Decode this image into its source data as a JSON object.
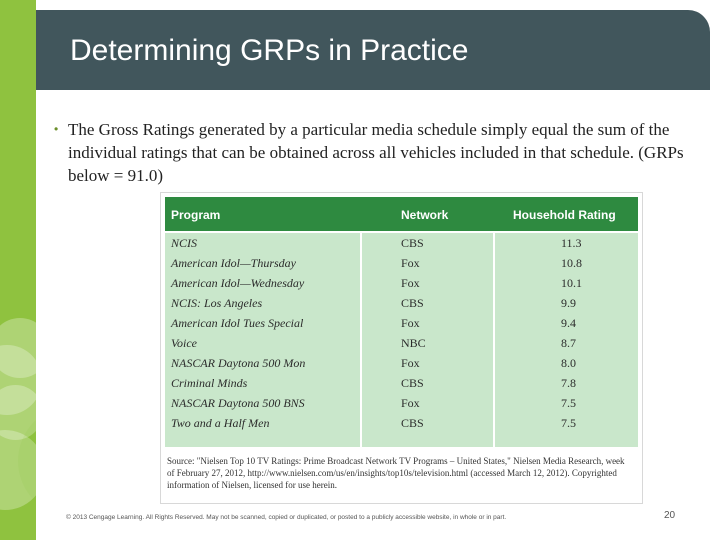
{
  "slide": {
    "title": "Determining GRPs in Practice",
    "bullet": "The Gross Ratings generated by a particular media schedule simply equal the sum of the individual ratings that can be obtained across all vehicles included in that schedule. (GRPs below = 91.0)",
    "table": {
      "headers": {
        "program": "Program",
        "network": "Network",
        "rating": "Household Rating"
      },
      "rows": [
        {
          "program": "NCIS",
          "network": "CBS",
          "rating": "11.3"
        },
        {
          "program": "American Idol—Thursday",
          "network": "Fox",
          "rating": "10.8"
        },
        {
          "program": "American Idol—Wednesday",
          "network": "Fox",
          "rating": "10.1"
        },
        {
          "program": "NCIS: Los Angeles",
          "network": "CBS",
          "rating": "9.9"
        },
        {
          "program": "American Idol Tues Special",
          "network": "Fox",
          "rating": "9.4"
        },
        {
          "program": "Voice",
          "network": "NBC",
          "rating": "8.7"
        },
        {
          "program": "NASCAR Daytona 500 Mon",
          "network": "Fox",
          "rating": "8.0"
        },
        {
          "program": "Criminal Minds",
          "network": "CBS",
          "rating": "7.8"
        },
        {
          "program": "NASCAR Daytona 500 BNS",
          "network": "Fox",
          "rating": "7.5"
        },
        {
          "program": "Two and a Half Men",
          "network": "CBS",
          "rating": "7.5"
        }
      ],
      "source": "Source: \"Nielsen Top 10 TV Ratings: Prime Broadcast Network TV Programs – United States,\" Nielsen Media Research, week of February 27, 2012, http://www.nielsen.com/us/en/insights/top10s/television.html (accessed March 12, 2012). Copyrighted information of Nielsen, licensed for use herein."
    },
    "footer": "© 2013 Cengage Learning. All Rights Reserved. May not be scanned, copied or duplicated, or posted to a publicly accessible website, in whole or in part.",
    "page_number": "20"
  },
  "colors": {
    "sidebar": "#8fc23f",
    "header": "#41565c",
    "table_header": "#2e8a40",
    "table_cell": "#c9e7cb"
  }
}
